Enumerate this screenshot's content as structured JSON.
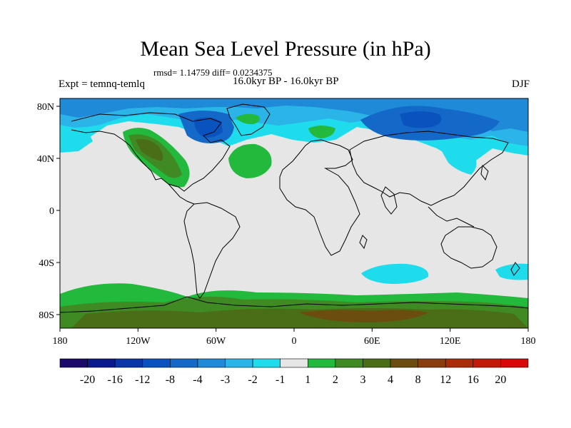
{
  "title": "Mean Sea Level Pressure (in hPa)",
  "stats": "rmsd= 1.14759 diff= 0.0234375",
  "left_label": "Expt = temnq-temlq",
  "center_label": "16.0kyr BP - 16.0kyr BP",
  "right_label": "DJF",
  "axes": {
    "lat_ticks": [
      "80N",
      "40N",
      "0",
      "40S",
      "80S"
    ],
    "lon_ticks": [
      "180",
      "120W",
      "60W",
      "0",
      "60E",
      "120E",
      "180"
    ]
  },
  "colorbar": {
    "labels": [
      "-20",
      "-16",
      "-12",
      "-8",
      "-4",
      "-3",
      "-2",
      "-1",
      "1",
      "2",
      "3",
      "4",
      "8",
      "12",
      "16",
      "20"
    ],
    "colors": [
      "#1c0a6b",
      "#0a1a8c",
      "#0a37a8",
      "#0a52bd",
      "#1469c8",
      "#1e8ad8",
      "#2ab4e8",
      "#1edcec",
      "#e6e6e6",
      "#22b93c",
      "#3f8a23",
      "#4a6d18",
      "#6b4d10",
      "#8a3e10",
      "#a82d08",
      "#c21a08",
      "#d80808"
    ]
  },
  "map_colors": {
    "neutral": "#e6e6e6",
    "coast": "#000000"
  }
}
